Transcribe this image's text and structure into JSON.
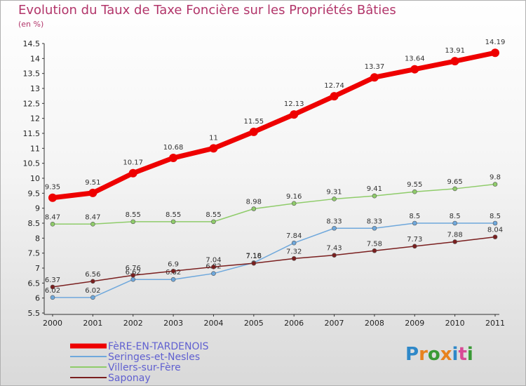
{
  "title": "Evolution du Taux de Taxe Foncière sur les Propriétés Bâties",
  "unit": "(en %)",
  "logo": {
    "text": "Proxiti",
    "colors": [
      "#2e88c8",
      "#e8821e",
      "#3a9a36",
      "#e8821e",
      "#2e88c8",
      "#d84a96",
      "#3a9a36"
    ]
  },
  "chart_data": {
    "type": "line",
    "title": "Evolution du Taux de Taxe Foncière sur les Propriétés Bâties",
    "ylabel": "(en %)",
    "xlabel": "",
    "x": [
      "2000",
      "2001",
      "2002",
      "2003",
      "2004",
      "2005",
      "2006",
      "2007",
      "2008",
      "2009",
      "2010",
      "2011"
    ],
    "ylim": [
      5.5,
      14.5
    ],
    "yticks": [
      "5.5",
      "6",
      "6.5",
      "7",
      "7.5",
      "8",
      "8.5",
      "9",
      "9.5",
      "10",
      "10.5",
      "11",
      "11.5",
      "12",
      "12.5",
      "13",
      "13.5",
      "14",
      "14.5"
    ],
    "grid": false,
    "legend": "bottom-left",
    "series": [
      {
        "name": "FèRE-EN-TARDENOIS",
        "color": "#ee0000",
        "width": 7,
        "dot": 6,
        "values": [
          9.35,
          9.51,
          10.17,
          10.68,
          11,
          11.55,
          12.13,
          12.74,
          13.37,
          13.64,
          13.91,
          14.19
        ],
        "labels": [
          "9.35",
          "9.51",
          "10.17",
          "10.68",
          "11",
          "11.55",
          "12.13",
          "12.74",
          "13.37",
          "13.64",
          "13.91",
          "14.19"
        ]
      },
      {
        "name": "Seringes-et-Nesles",
        "color": "#6fa8dc",
        "width": 1.5,
        "dot": 3,
        "values": [
          6.02,
          6.02,
          6.62,
          6.62,
          6.82,
          7.18,
          7.84,
          8.33,
          8.33,
          8.5,
          8.5,
          8.5
        ],
        "labels": [
          "6.02",
          "6.02",
          "6.62",
          "6.62",
          "6.82",
          "7.18",
          "7.84",
          "8.33",
          "8.33",
          "8.5",
          "8.5",
          "8.5"
        ]
      },
      {
        "name": "Villers-sur-Fère",
        "color": "#8fcc6a",
        "width": 1.5,
        "dot": 3,
        "values": [
          8.47,
          8.47,
          8.55,
          8.55,
          8.55,
          8.98,
          9.16,
          9.31,
          9.41,
          9.55,
          9.65,
          9.8
        ],
        "labels": [
          "8.47",
          "8.47",
          "8.55",
          "8.55",
          "8.55",
          "8.98",
          "9.16",
          "9.31",
          "9.41",
          "9.55",
          "9.65",
          "9.8"
        ]
      },
      {
        "name": "Saponay",
        "color": "#7a1f1f",
        "width": 1.5,
        "dot": 3,
        "values": [
          6.37,
          6.56,
          6.76,
          6.9,
          7.04,
          7.16,
          7.32,
          7.43,
          7.58,
          7.73,
          7.88,
          8.04
        ],
        "labels": [
          "6.37",
          "6.56",
          "6.76",
          "6.9",
          "7.04",
          "7.16",
          "7.32",
          "7.43",
          "7.58",
          "7.73",
          "7.88",
          "8.04"
        ]
      }
    ]
  }
}
